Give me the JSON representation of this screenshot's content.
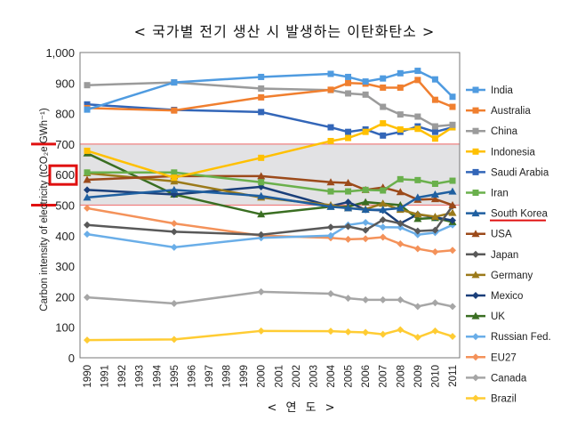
{
  "chart_data": {
    "type": "line",
    "title": "< 국가별 전기 생산 시 발생하는 이탄화탄소 >",
    "xlabel": "< 연 도 >",
    "ylabel": "Carbon intensity of electricity (tCO₂e GWh⁻¹)",
    "ylim": [
      0,
      1000
    ],
    "yticks": [
      "0",
      "100",
      "200",
      "300",
      "400",
      "500",
      "600",
      "700",
      "800",
      "900",
      "1,000"
    ],
    "xticks": [
      "1990",
      "1991",
      "1992",
      "1993",
      "1994",
      "1995",
      "1996",
      "1997",
      "1998",
      "1999",
      "2000",
      "2001",
      "2002",
      "2003",
      "2004",
      "2005",
      "2006",
      "2007",
      "2008",
      "2009",
      "2010",
      "2011"
    ],
    "x": [
      1990,
      1995,
      2000,
      2004,
      2005,
      2006,
      2007,
      2008,
      2009,
      2010,
      2011
    ],
    "legend_position": "right",
    "highlight_band": [
      500,
      700
    ],
    "highlight_color": "#e01010",
    "highlighted_tick": "600",
    "highlighted_series": "South Korea",
    "series": [
      {
        "name": "India",
        "color": "#4f9be0",
        "marker": "square",
        "values": [
          813,
          902,
          920,
          930,
          920,
          905,
          915,
          932,
          940,
          912,
          855
        ]
      },
      {
        "name": "Australia",
        "color": "#f07f2f",
        "marker": "square",
        "values": [
          818,
          810,
          853,
          878,
          900,
          898,
          885,
          885,
          910,
          845,
          822
        ]
      },
      {
        "name": "China",
        "color": "#9b9b9b",
        "marker": "square",
        "values": [
          893,
          902,
          882,
          877,
          866,
          862,
          822,
          797,
          790,
          758,
          763
        ]
      },
      {
        "name": "Indonesia",
        "color": "#ffc000",
        "marker": "square",
        "values": [
          678,
          590,
          655,
          710,
          720,
          740,
          768,
          748,
          750,
          718,
          755
        ]
      },
      {
        "name": "Saudi Arabia",
        "color": "#3366b8",
        "marker": "square",
        "values": [
          830,
          812,
          805,
          755,
          740,
          748,
          728,
          740,
          758,
          740,
          755
        ]
      },
      {
        "name": "Iran",
        "color": "#6ab04c",
        "marker": "square",
        "values": [
          607,
          607,
          575,
          545,
          545,
          550,
          548,
          585,
          582,
          570,
          580
        ]
      },
      {
        "name": "South Korea",
        "color": "#1f5fa0",
        "marker": "triangle",
        "values": [
          525,
          550,
          530,
          495,
          490,
          485,
          485,
          490,
          525,
          535,
          545
        ]
      },
      {
        "name": "USA",
        "color": "#9c4a1a",
        "marker": "triangle",
        "values": [
          583,
          595,
          595,
          575,
          573,
          550,
          558,
          543,
          518,
          520,
          500
        ]
      },
      {
        "name": "Japan",
        "color": "#595959",
        "marker": "diamond",
        "values": [
          435,
          413,
          403,
          428,
          430,
          418,
          452,
          440,
          415,
          418,
          497
        ]
      },
      {
        "name": "Germany",
        "color": "#9b7a1a",
        "marker": "triangle",
        "values": [
          605,
          578,
          525,
          500,
          490,
          487,
          505,
          485,
          470,
          462,
          475
        ]
      },
      {
        "name": "Mexico",
        "color": "#1a3f7a",
        "marker": "diamond",
        "values": [
          550,
          535,
          560,
          497,
          510,
          485,
          483,
          440,
          470,
          460,
          450
        ]
      },
      {
        "name": "UK",
        "color": "#3a6e22",
        "marker": "triangle",
        "values": [
          670,
          535,
          470,
          495,
          495,
          510,
          505,
          500,
          455,
          458,
          445
        ]
      },
      {
        "name": "Russian Fed.",
        "color": "#6aaee8",
        "marker": "diamond",
        "values": [
          405,
          362,
          393,
          400,
          435,
          443,
          428,
          427,
          403,
          410,
          435
        ]
      },
      {
        "name": "EU27",
        "color": "#f4925a",
        "marker": "diamond",
        "values": [
          490,
          440,
          400,
          393,
          388,
          390,
          395,
          373,
          357,
          347,
          352
        ]
      },
      {
        "name": "Canada",
        "color": "#a6a6a6",
        "marker": "diamond",
        "values": [
          198,
          178,
          216,
          210,
          195,
          190,
          190,
          190,
          168,
          180,
          168
        ]
      },
      {
        "name": "Brazil",
        "color": "#ffcc33",
        "marker": "diamond",
        "values": [
          58,
          60,
          88,
          87,
          85,
          83,
          77,
          92,
          67,
          88,
          70
        ]
      }
    ]
  }
}
